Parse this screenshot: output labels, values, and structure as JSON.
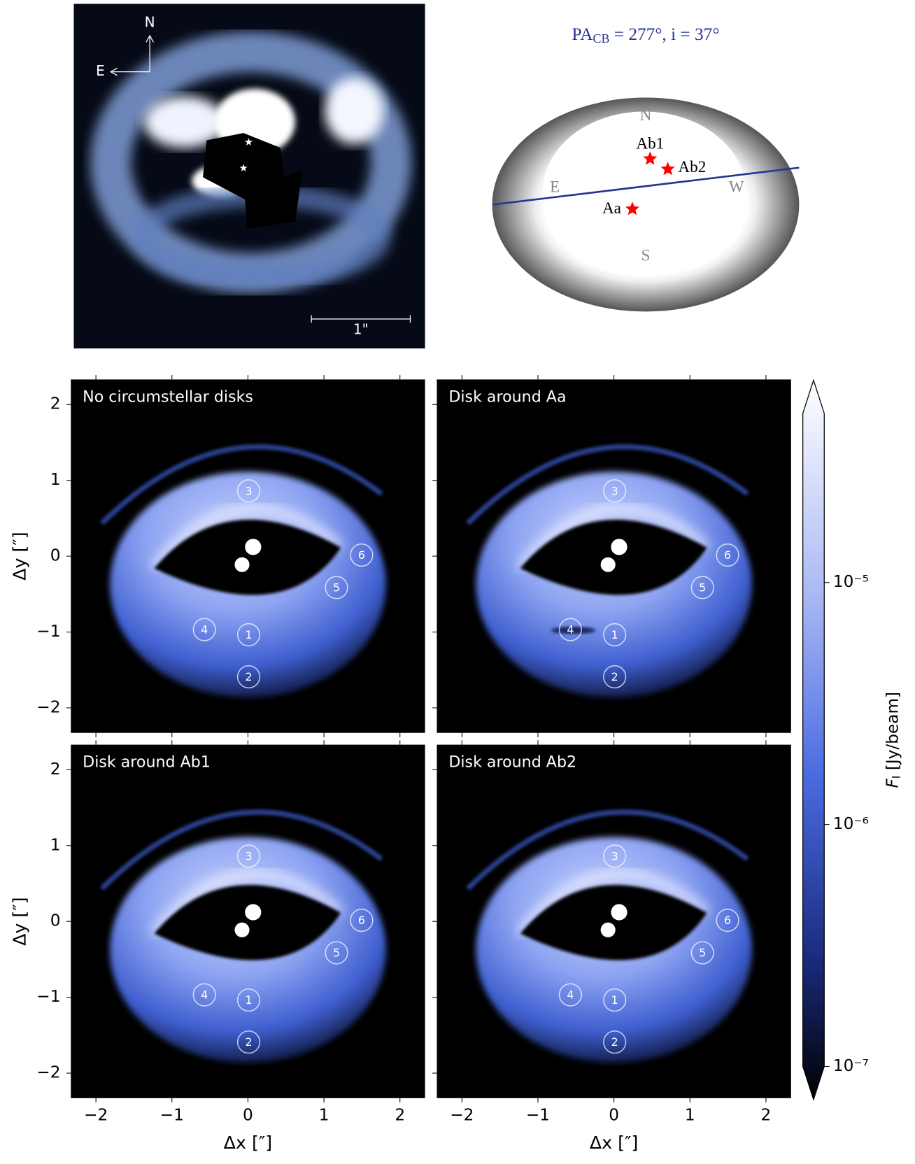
{
  "observation": {
    "north": "N",
    "east": "E",
    "scale": "1\""
  },
  "schematic": {
    "title_main": "PA",
    "title_sub": "CB",
    "title_rest": " = 277°, i = 37°",
    "directions": [
      "N",
      "S",
      "E",
      "W"
    ],
    "stars": [
      "Aa",
      "Ab1",
      "Ab2"
    ]
  },
  "chart_data": {
    "type": "image-grid",
    "panels": [
      {
        "title": "No circumstellar disks"
      },
      {
        "title": "Disk around Aa"
      },
      {
        "title": "Disk around Ab1"
      },
      {
        "title": "Disk around Ab2"
      }
    ],
    "region_labels": [
      "1",
      "2",
      "3",
      "4",
      "5",
      "6"
    ],
    "xlim": [
      -2.33,
      2.33
    ],
    "ylim": [
      -2.33,
      2.33
    ],
    "xticks": [
      {
        "value": -2,
        "label": "−2"
      },
      {
        "value": -1,
        "label": "−1"
      },
      0,
      1,
      2
    ],
    "yticks": [
      {
        "value": -2,
        "label": "−2"
      },
      {
        "value": -1,
        "label": "−1"
      },
      0,
      1,
      2
    ],
    "xlabel": "Δx [″]",
    "ylabel": "Δy [″]",
    "colorbar": {
      "scale": "log",
      "lim": [
        1e-07,
        5e-05
      ],
      "ticks": [
        {
          "value": 1e-07,
          "label": "10⁻⁷"
        },
        {
          "value": 1e-06,
          "label": "10⁻⁶"
        },
        {
          "value": 1e-05,
          "label": "10⁻⁵"
        }
      ],
      "label_symbol": "F",
      "label_sub": "I",
      "label_unit": " [Jy/beam]"
    }
  }
}
